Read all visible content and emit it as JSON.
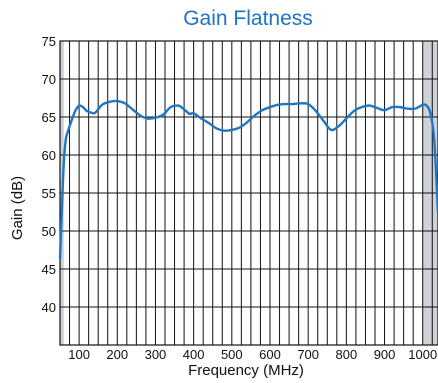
{
  "chart_data": {
    "type": "line",
    "title": "Gain Flatness",
    "xlabel": "Frequency (MHz)",
    "ylabel": "Gain (dB)",
    "xlim": [
      50,
      1040
    ],
    "ylim": [
      35,
      75
    ],
    "x_ticks": [
      "100",
      "200",
      "300",
      "400",
      "500",
      "600",
      "700",
      "800",
      "900",
      "1000"
    ],
    "y_ticks": [
      "40",
      "45",
      "50",
      "55",
      "60",
      "65",
      "70",
      "75"
    ],
    "grid": true,
    "shaded_band_edges": [
      [
        50,
        60
      ],
      [
        1000,
        1040
      ]
    ],
    "series": [
      {
        "color": "#1f77c4",
        "x": [
          50,
          55,
          60,
          65,
          70,
          80,
          90,
          100,
          110,
          120,
          130,
          140,
          150,
          160,
          180,
          200,
          220,
          240,
          260,
          280,
          300,
          320,
          340,
          360,
          370,
          380,
          390,
          400,
          420,
          440,
          460,
          480,
          500,
          520,
          540,
          560,
          580,
          600,
          620,
          640,
          660,
          680,
          700,
          720,
          740,
          760,
          780,
          800,
          820,
          840,
          860,
          880,
          900,
          920,
          940,
          960,
          980,
          1000,
          1010,
          1020,
          1030,
          1040
        ],
        "y": [
          46.3,
          53,
          59,
          62,
          63,
          64.5,
          65.8,
          66.5,
          66.3,
          65.8,
          65.6,
          65.5,
          66.0,
          66.6,
          67.0,
          67.1,
          66.8,
          66.0,
          65.2,
          64.8,
          64.9,
          65.3,
          66.3,
          66.5,
          66.2,
          65.8,
          65.4,
          65.5,
          64.8,
          64.2,
          63.5,
          63.2,
          63.3,
          63.6,
          64.3,
          65.2,
          65.9,
          66.3,
          66.6,
          66.7,
          66.7,
          66.8,
          66.7,
          65.8,
          64.5,
          63.3,
          63.8,
          64.8,
          65.8,
          66.3,
          66.5,
          66.2,
          65.9,
          66.3,
          66.3,
          66.1,
          66.1,
          66.6,
          66.5,
          65.5,
          62.0,
          52.5
        ]
      }
    ]
  }
}
